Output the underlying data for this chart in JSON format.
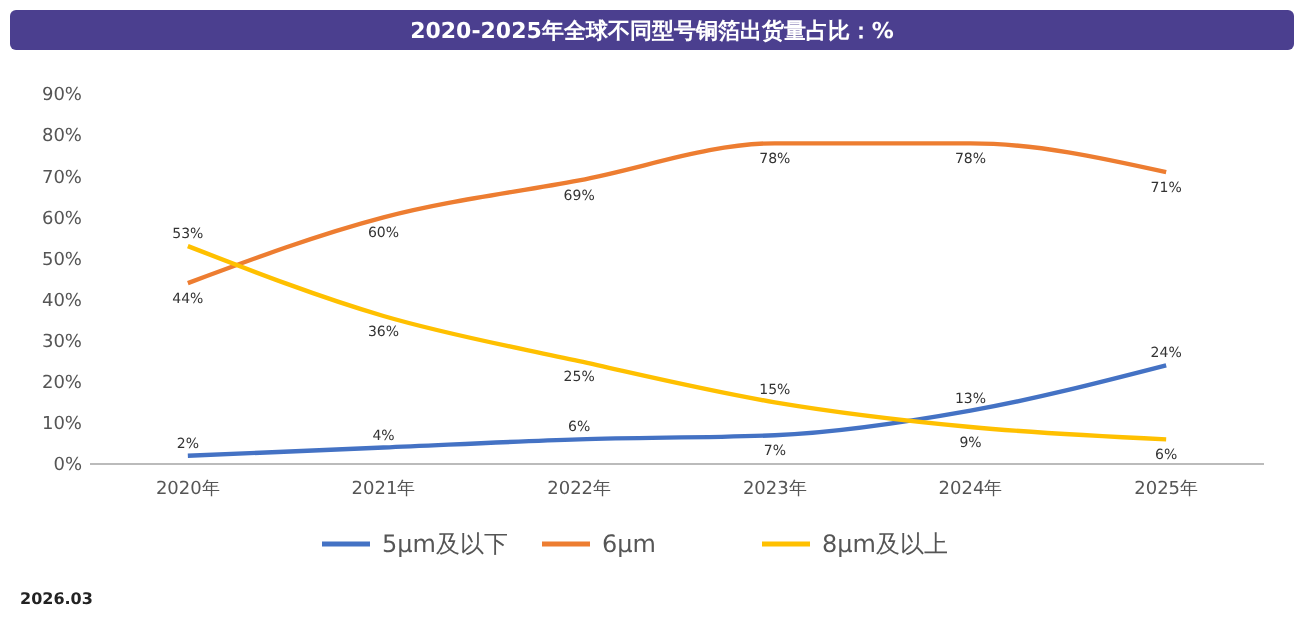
{
  "chart_data": {
    "type": "line",
    "title": "2020-2025年全球不同型号铜箔出货量占比：%",
    "categories": [
      "2020年",
      "2021年",
      "2022年",
      "2023年",
      "2024年",
      "2025年"
    ],
    "series": [
      {
        "name": "5μm及以下",
        "color": "#4472c4",
        "values": [
          2,
          4,
          6,
          7,
          13,
          24
        ],
        "value_labels": [
          "2%",
          "4%",
          "6%",
          "7%",
          "13%",
          "24%"
        ]
      },
      {
        "name": "6μm",
        "color": "#ed7d31",
        "values": [
          44,
          60,
          69,
          78,
          78,
          71
        ],
        "value_labels": [
          "44%",
          "60%",
          "69%",
          "78%",
          "78%",
          "71%"
        ]
      },
      {
        "name": "8μm及以上",
        "color": "#ffc000",
        "values": [
          53,
          36,
          25,
          15,
          9,
          6
        ],
        "value_labels": [
          "53%",
          "36%",
          "25%",
          "15%",
          "9%",
          "6%"
        ]
      }
    ],
    "ylim": [
      0,
      90
    ],
    "yticks": [
      {
        "value": 0,
        "label": "0%"
      },
      {
        "value": 10,
        "label": "10%"
      },
      {
        "value": 20,
        "label": "20%"
      },
      {
        "value": 30,
        "label": "30%"
      },
      {
        "value": 40,
        "label": "40%"
      },
      {
        "value": 50,
        "label": "50%"
      },
      {
        "value": 60,
        "label": "60%"
      },
      {
        "value": 70,
        "label": "70%"
      },
      {
        "value": 80,
        "label": "80%"
      },
      {
        "value": 90,
        "label": "90%"
      }
    ],
    "grid": false,
    "legend": "bottom",
    "marker": "none",
    "line_style": "solid",
    "annotations": [
      "2026.03"
    ]
  }
}
